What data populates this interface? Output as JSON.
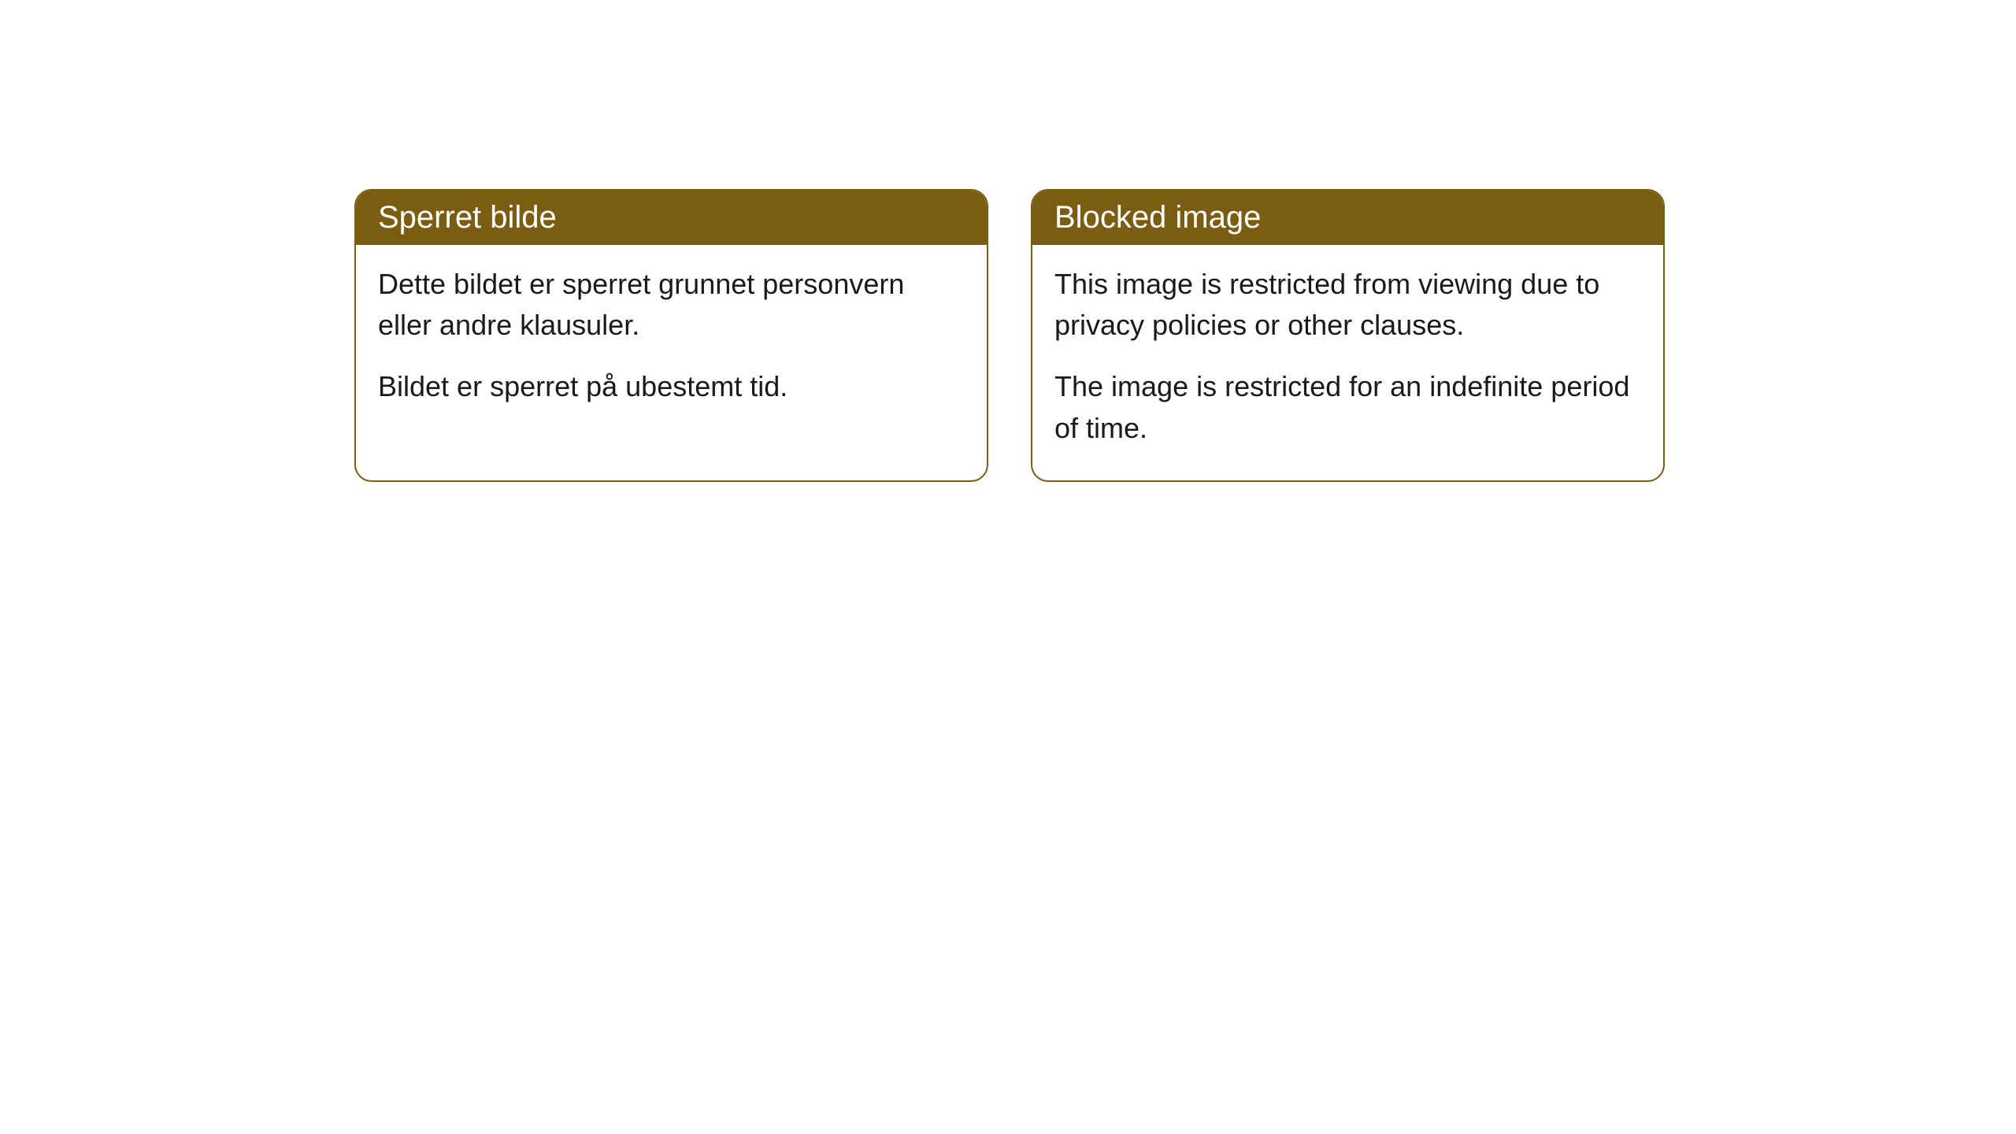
{
  "cards": [
    {
      "title": "Sperret bilde",
      "paragraph1": "Dette bildet er sperret grunnet personvern eller andre klausuler.",
      "paragraph2": "Bildet er sperret på ubestemt tid."
    },
    {
      "title": "Blocked image",
      "paragraph1": "This image is restricted from viewing due to privacy policies or other clauses.",
      "paragraph2": "The image is restricted for an indefinite period of time."
    }
  ],
  "styling": {
    "header_bg_color": "#7a5c12",
    "header_text_color": "#ffffff",
    "border_color": "#7a5c12",
    "body_bg_color": "#ffffff",
    "body_text_color": "#1a1a1a",
    "border_radius": 22,
    "title_fontsize": 40,
    "body_fontsize": 36
  }
}
